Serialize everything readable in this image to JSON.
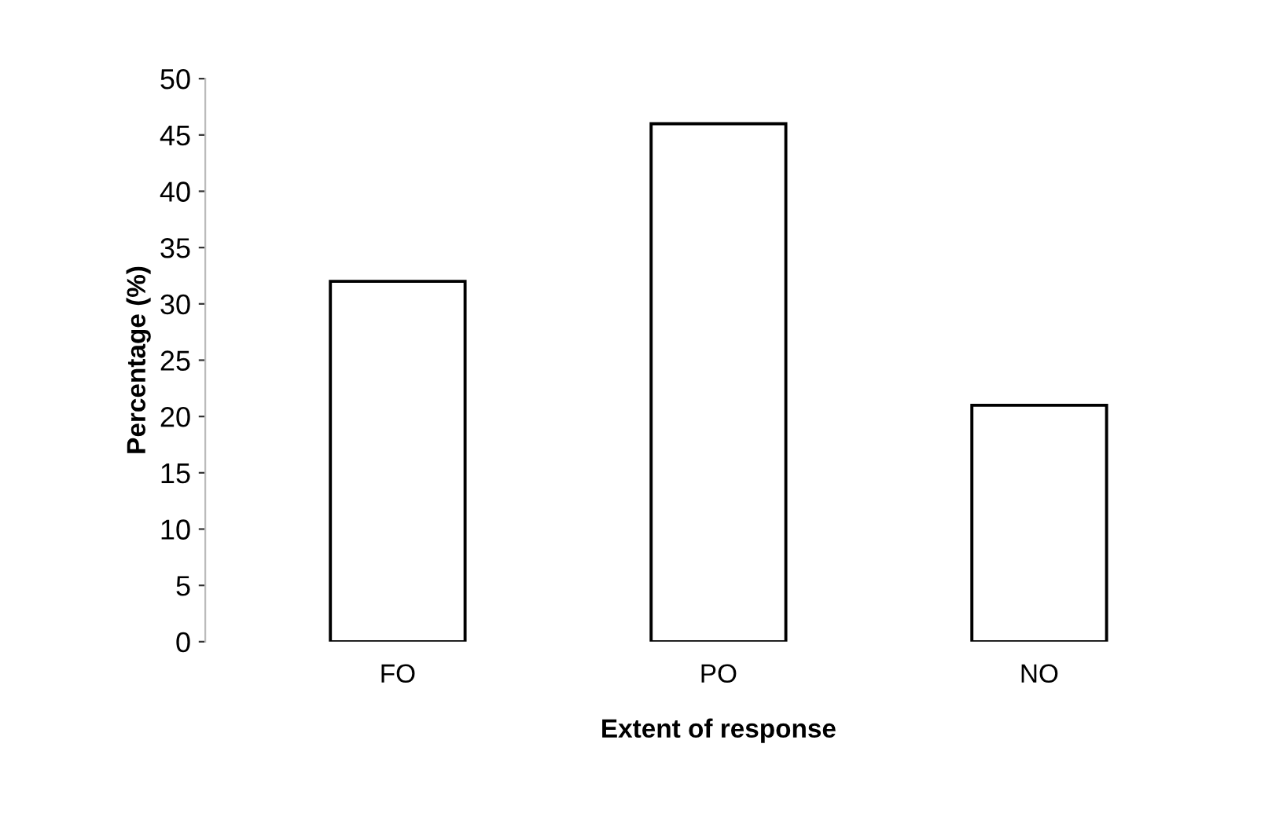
{
  "chart_data": {
    "type": "bar",
    "xlabel": "Extent of response",
    "ylabel": "Percentage (%)",
    "categories": [
      "FO",
      "PO",
      "NO"
    ],
    "values": [
      32,
      46,
      21
    ],
    "color": "#ffffff",
    "ylim": [
      0,
      50
    ],
    "yticks": [
      0,
      5,
      10,
      15,
      20,
      25,
      30,
      35,
      40,
      45,
      50
    ],
    "grid": false,
    "legend": false
  }
}
